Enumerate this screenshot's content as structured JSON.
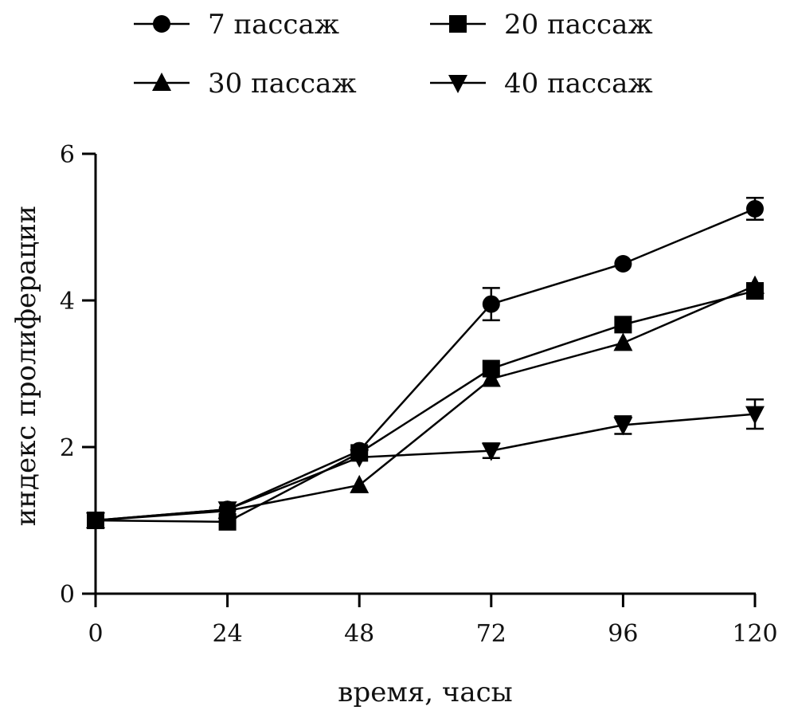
{
  "chart_data": {
    "type": "line",
    "title": "",
    "xlabel": "время, часы",
    "ylabel": "индекс пролиферации",
    "x": [
      0,
      24,
      48,
      72,
      96,
      120
    ],
    "xticks": [
      "0",
      "24",
      "48",
      "72",
      "96",
      "120"
    ],
    "yticks": [
      "0",
      "2",
      "4",
      "6"
    ],
    "xlim": [
      0,
      120
    ],
    "ylim": [
      0,
      6
    ],
    "grid": false,
    "legend_position": "top",
    "series": [
      {
        "name": "7 пассаж",
        "marker": "circle",
        "values": [
          1.0,
          1.15,
          1.95,
          3.95,
          4.5,
          5.25
        ],
        "errors": [
          0,
          0.03,
          0.05,
          0.22,
          0.04,
          0.15
        ]
      },
      {
        "name": "20 пассаж",
        "marker": "square",
        "values": [
          1.0,
          0.98,
          1.92,
          3.07,
          3.67,
          4.13
        ],
        "errors": [
          0,
          0.03,
          0.04,
          0.05,
          0.04,
          0.06
        ]
      },
      {
        "name": "30 пассаж",
        "marker": "triangle-up",
        "values": [
          1.0,
          1.13,
          1.48,
          2.93,
          3.42,
          4.2
        ],
        "errors": [
          0,
          0.03,
          0.04,
          0.05,
          0.04,
          0.05
        ]
      },
      {
        "name": "40 пассаж",
        "marker": "triangle-down",
        "values": [
          1.0,
          1.15,
          1.86,
          1.95,
          2.3,
          2.45
        ],
        "errors": [
          0,
          0.04,
          0.05,
          0.1,
          0.12,
          0.2
        ]
      }
    ]
  }
}
